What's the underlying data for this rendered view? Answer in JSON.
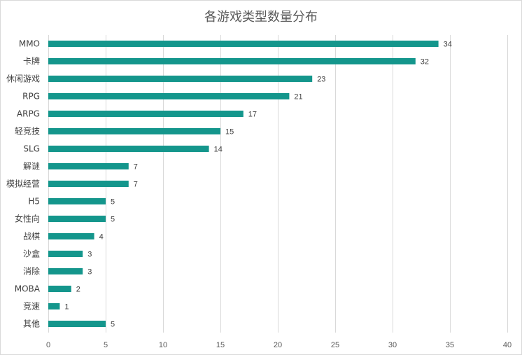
{
  "chart_data": {
    "type": "bar",
    "orientation": "horizontal",
    "title": "各游戏类型数量分布",
    "categories": [
      "MMO",
      "卡牌",
      "休闲游戏",
      "RPG",
      "ARPG",
      "轻竞技",
      "SLG",
      "解谜",
      "模拟经营",
      "H5",
      "女性向",
      "战棋",
      "沙盒",
      "消除",
      "MOBA",
      "竞速",
      "其他"
    ],
    "values": [
      34,
      32,
      23,
      21,
      17,
      15,
      14,
      7,
      7,
      5,
      5,
      4,
      3,
      3,
      2,
      1,
      5
    ],
    "xlim": [
      0,
      40
    ],
    "xticks": [
      0,
      5,
      10,
      15,
      20,
      25,
      30,
      35,
      40
    ],
    "grid": true,
    "legend": "none",
    "bar_color": "#14968C"
  }
}
